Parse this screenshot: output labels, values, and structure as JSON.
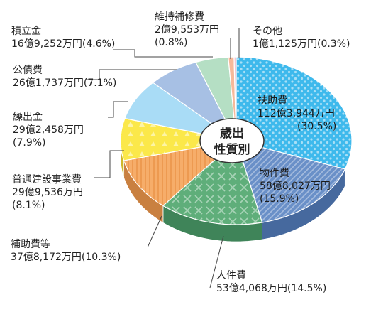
{
  "chart_data": {
    "type": "pie",
    "center_label": [
      "歳出",
      "性質別"
    ],
    "unit": "万円",
    "slices": [
      {
        "name": "扶助費",
        "amount": "112億3,944万円",
        "percent": 30.5,
        "percent_text": "(30.5%)",
        "color": "#3eb9ec",
        "side": "#2a86ad",
        "pattern": "dots"
      },
      {
        "name": "物件費",
        "amount": "58億8,027万円",
        "percent": 15.9,
        "percent_text": "(15.9%)",
        "color": "#6a90c8",
        "side": "#46699e",
        "pattern": "diag"
      },
      {
        "name": "人件費",
        "amount": "53億4,068万円",
        "percent": 14.5,
        "percent_text": "(14.5%)",
        "color": "#5fae7a",
        "side": "#3f8459",
        "pattern": "cross"
      },
      {
        "name": "補助費等",
        "amount": "37億8,172万円",
        "percent": 10.3,
        "percent_text": "(10.3%)",
        "color": "#f6ad6a",
        "side": "#c98040",
        "pattern": "vstripe"
      },
      {
        "name": "普通建設事業費",
        "amount": "29億9,536万円",
        "percent": 8.1,
        "percent_text": "(8.1%)",
        "color": "#fbe84a",
        "side": "#cfb82a",
        "pattern": "tri"
      },
      {
        "name": "繰出金",
        "amount": "29億2,458万円",
        "percent": 7.9,
        "percent_text": "(7.9%)",
        "color": "#a9dcf6",
        "side": "#7fb4d2",
        "pattern": "none"
      },
      {
        "name": "公債費",
        "amount": "26億1,737万円",
        "percent": 7.1,
        "percent_text": "(7.1%)",
        "color": "#a7c0e4",
        "side": "#7f99c0",
        "pattern": "none"
      },
      {
        "name": "積立金",
        "amount": "16億9,252万円",
        "percent": 4.6,
        "percent_text": "(4.6%)",
        "color": "#b5dfc4",
        "side": "#8cbb9d",
        "pattern": "none"
      },
      {
        "name": "維持補修費",
        "amount": "2億9,553万円",
        "percent": 0.8,
        "percent_text": "(0.8%)",
        "color": "#f7b99a",
        "side": "#d08f6e",
        "pattern": "none"
      },
      {
        "name": "その他",
        "amount": "1億1,125万円",
        "percent": 0.3,
        "percent_text": "(0.3%)",
        "color": "#f2c6d6",
        "side": "#cc9fb0",
        "pattern": "none"
      }
    ]
  }
}
